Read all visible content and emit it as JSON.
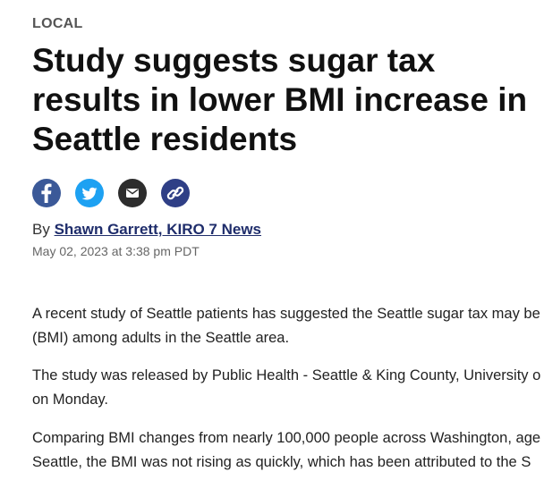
{
  "section": {
    "label": "LOCAL"
  },
  "headline": {
    "line1": "Study suggests sugar tax",
    "line2": "results in lower BMI increase in",
    "line3": "Seattle residents"
  },
  "share": {
    "icons": [
      "facebook-icon",
      "twitter-icon",
      "email-icon",
      "link-icon"
    ],
    "colors": {
      "facebook": "#3b5998",
      "twitter": "#1da1f2",
      "email": "#2d2d2d",
      "link": "#2f3f86"
    }
  },
  "byline": {
    "prefix": "By ",
    "author": "Shawn Garrett, KIRO 7 News"
  },
  "dateline": "May 02, 2023 at 3:38 pm PDT",
  "body": {
    "p1_line1": "A recent study of Seattle patients has suggested the Seattle sugar tax may be",
    "p1_line2": "(BMI) among adults in the Seattle area.",
    "p2_line1": "The study was released by Public Health - Seattle & King County, University o",
    "p2_line2": "on Monday.",
    "p3_line1": "Comparing BMI changes from nearly 100,000 people across Washington, age",
    "p3_line2": "Seattle, the BMI was not rising as quickly, which has been attributed to the S"
  }
}
